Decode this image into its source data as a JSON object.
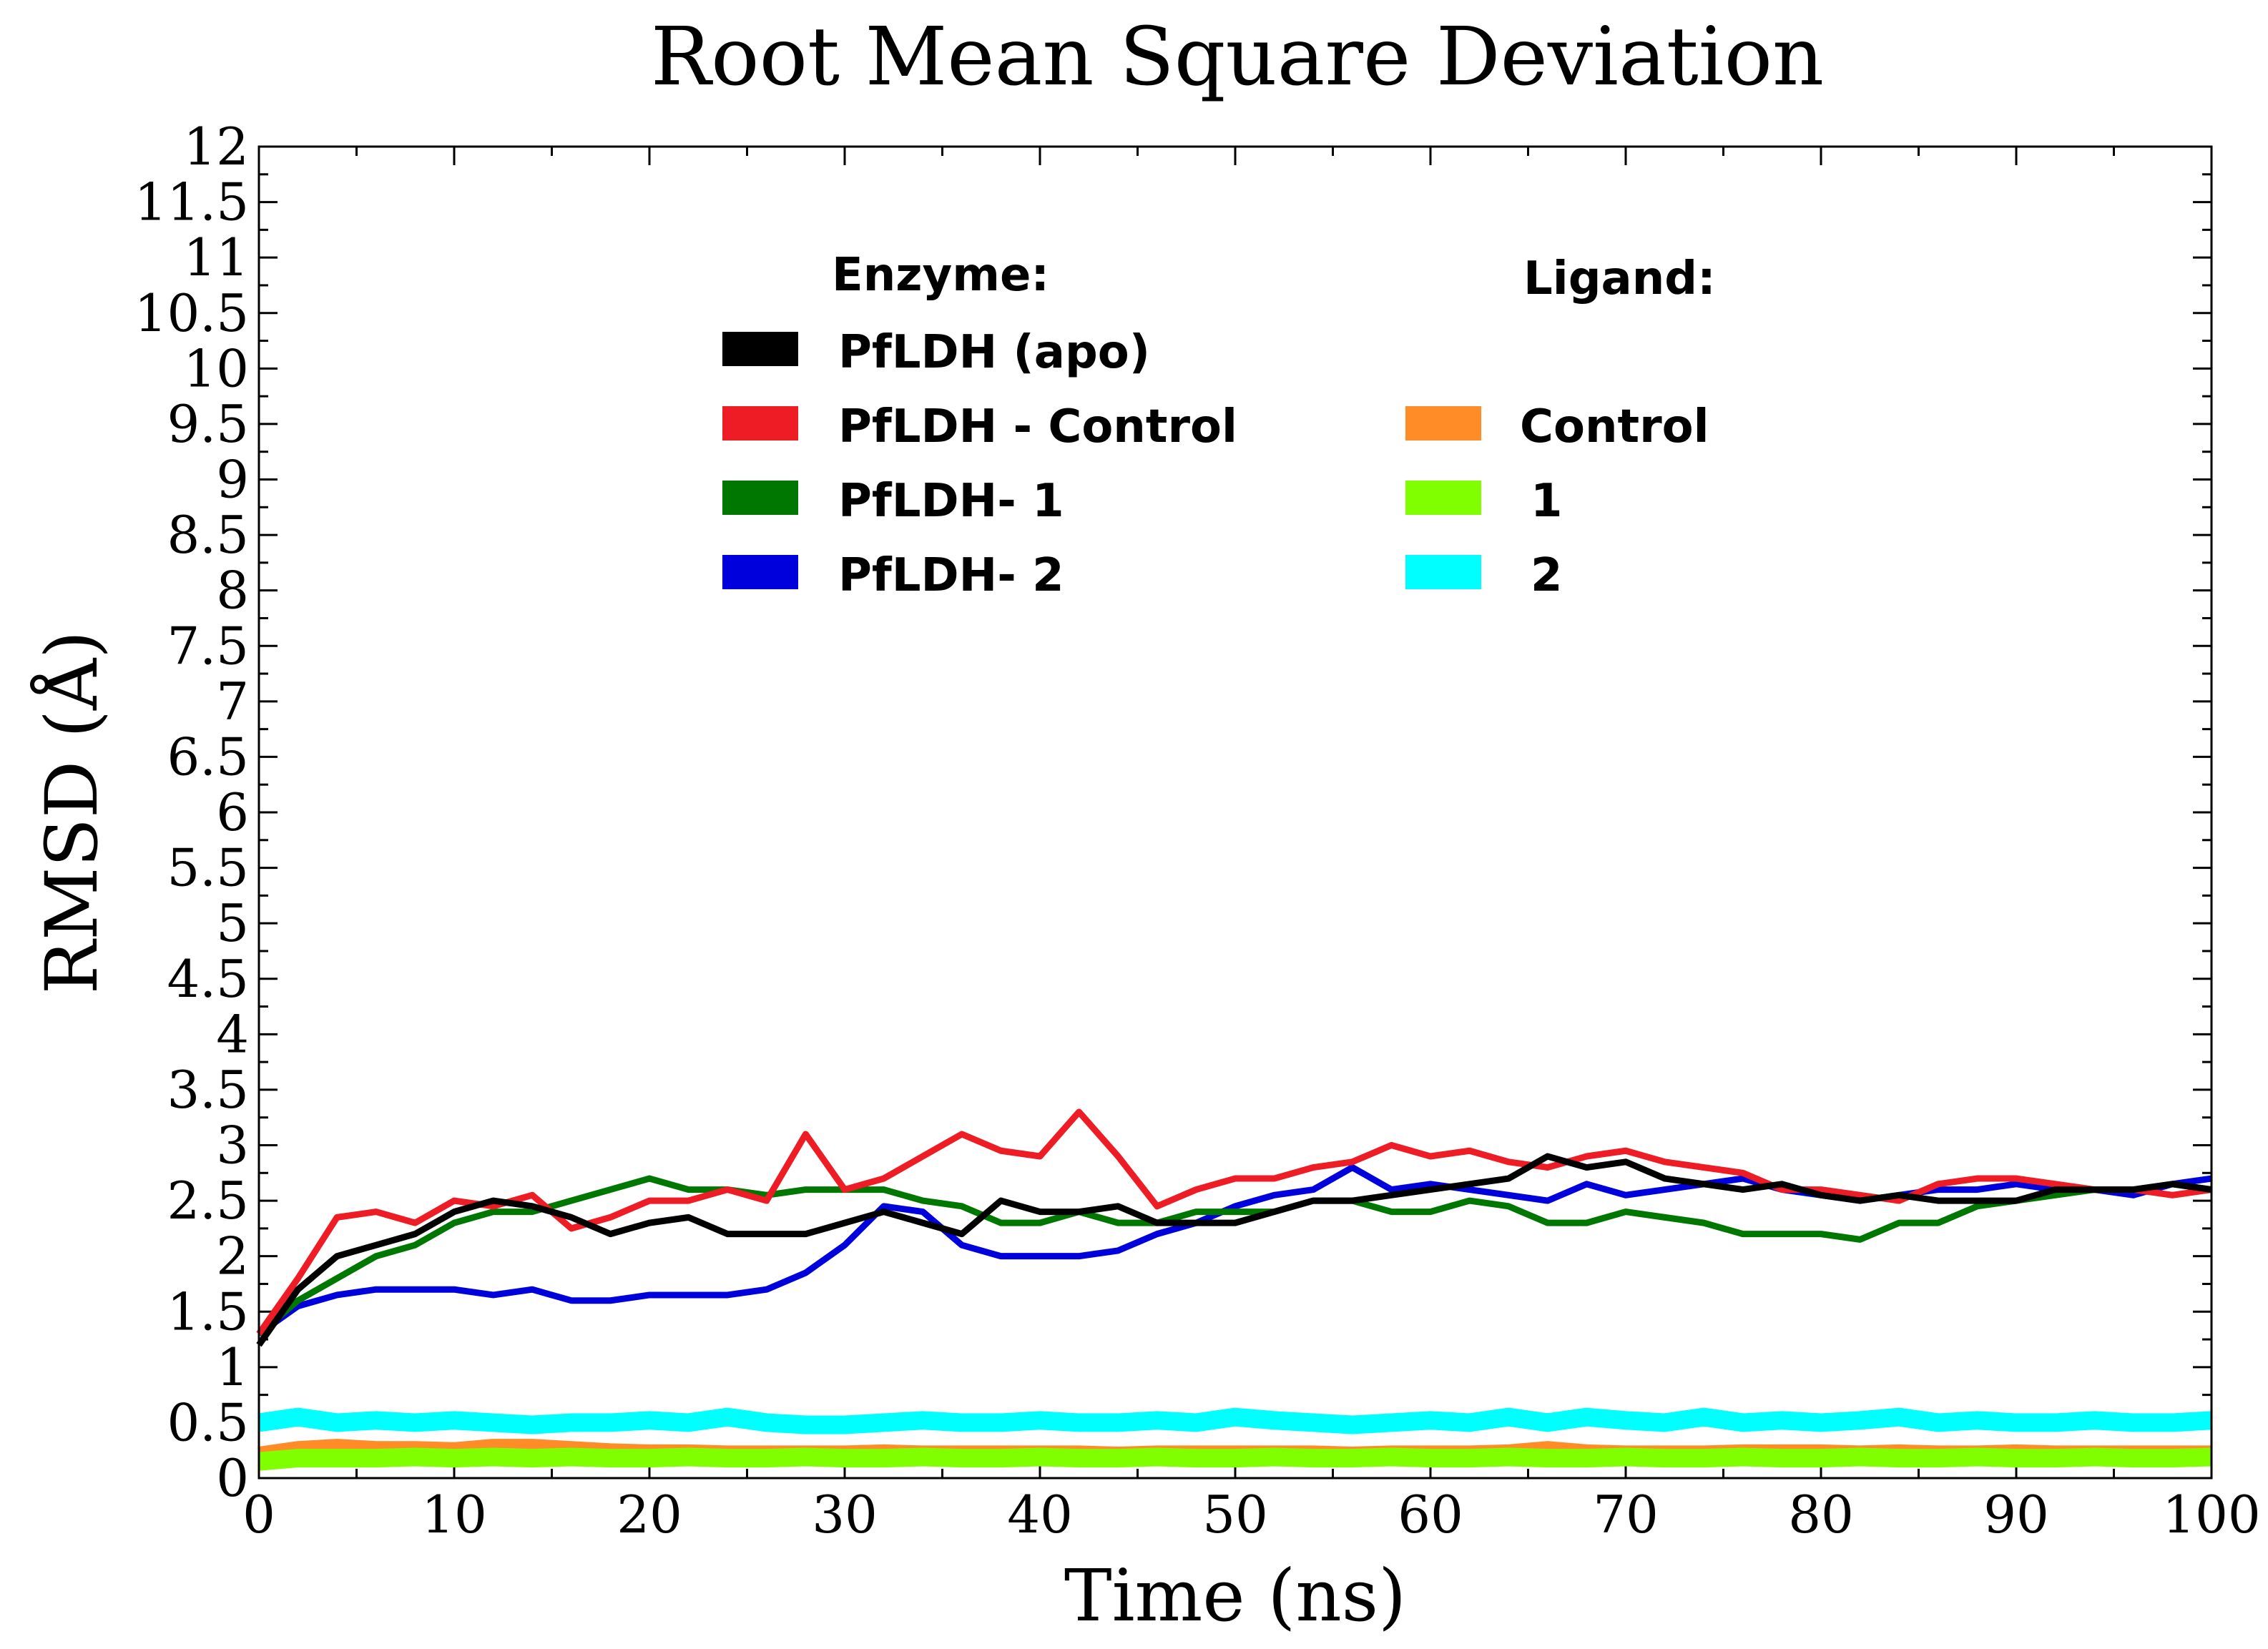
{
  "chart_data": {
    "type": "line",
    "title": "Root Mean Square Deviation",
    "xlabel": "Time (ns)",
    "ylabel": "RMSD (Å)",
    "xlim": [
      0,
      100
    ],
    "ylim": [
      0,
      12
    ],
    "x_ticks": [
      0,
      10,
      20,
      30,
      40,
      50,
      60,
      70,
      80,
      90,
      100
    ],
    "y_ticks": [
      0,
      0.5,
      1,
      1.5,
      2,
      2.5,
      3,
      3.5,
      4,
      4.5,
      5,
      5.5,
      6,
      6.5,
      7,
      7.5,
      8,
      8.5,
      9,
      9.5,
      10,
      10.5,
      11,
      11.5,
      12
    ],
    "legend": {
      "placement": "top",
      "enzyme_heading": "Enzyme:",
      "ligand_heading": "Ligand:"
    },
    "x": [
      0,
      2,
      4,
      6,
      8,
      10,
      12,
      14,
      16,
      18,
      20,
      22,
      24,
      26,
      28,
      30,
      32,
      34,
      36,
      38,
      40,
      42,
      44,
      46,
      48,
      50,
      52,
      54,
      56,
      58,
      60,
      62,
      64,
      66,
      68,
      70,
      72,
      74,
      76,
      78,
      80,
      82,
      84,
      86,
      88,
      90,
      92,
      94,
      96,
      98,
      100
    ],
    "series": [
      {
        "name": "PfLDH (apo)",
        "group": "enzyme",
        "color": "#000000",
        "values": [
          1.2,
          1.7,
          2.0,
          2.1,
          2.2,
          2.4,
          2.5,
          2.45,
          2.35,
          2.2,
          2.3,
          2.35,
          2.2,
          2.2,
          2.2,
          2.3,
          2.4,
          2.3,
          2.2,
          2.5,
          2.4,
          2.4,
          2.45,
          2.3,
          2.3,
          2.3,
          2.4,
          2.5,
          2.5,
          2.55,
          2.6,
          2.65,
          2.7,
          2.9,
          2.8,
          2.85,
          2.7,
          2.65,
          2.6,
          2.65,
          2.55,
          2.5,
          2.55,
          2.5,
          2.5,
          2.5,
          2.6,
          2.6,
          2.6,
          2.65,
          2.6
        ]
      },
      {
        "name": "PfLDH - Control",
        "group": "enzyme",
        "color": "#ee1c24",
        "values": [
          1.3,
          1.8,
          2.35,
          2.4,
          2.3,
          2.5,
          2.45,
          2.55,
          2.25,
          2.35,
          2.5,
          2.5,
          2.6,
          2.5,
          3.1,
          2.6,
          2.7,
          2.9,
          3.1,
          2.95,
          2.9,
          3.3,
          2.9,
          2.45,
          2.6,
          2.7,
          2.7,
          2.8,
          2.85,
          3.0,
          2.9,
          2.95,
          2.85,
          2.8,
          2.9,
          2.95,
          2.85,
          2.8,
          2.75,
          2.6,
          2.6,
          2.55,
          2.5,
          2.65,
          2.7,
          2.7,
          2.65,
          2.6,
          2.6,
          2.55,
          2.6
        ]
      },
      {
        "name": "PfLDH- 1",
        "group": "enzyme",
        "color": "#007700",
        "values": [
          1.3,
          1.6,
          1.8,
          2.0,
          2.1,
          2.3,
          2.4,
          2.4,
          2.5,
          2.6,
          2.7,
          2.6,
          2.6,
          2.55,
          2.6,
          2.6,
          2.6,
          2.5,
          2.45,
          2.3,
          2.3,
          2.4,
          2.3,
          2.3,
          2.4,
          2.4,
          2.4,
          2.5,
          2.5,
          2.4,
          2.4,
          2.5,
          2.45,
          2.3,
          2.3,
          2.4,
          2.35,
          2.3,
          2.2,
          2.2,
          2.2,
          2.15,
          2.3,
          2.3,
          2.45,
          2.5,
          2.55,
          2.6,
          2.6,
          2.65,
          2.6
        ]
      },
      {
        "name": "PfLDH- 2",
        "group": "enzyme",
        "color": "#0000dd",
        "values": [
          1.3,
          1.55,
          1.65,
          1.7,
          1.7,
          1.7,
          1.65,
          1.7,
          1.6,
          1.6,
          1.65,
          1.65,
          1.65,
          1.7,
          1.85,
          2.1,
          2.45,
          2.4,
          2.1,
          2.0,
          2.0,
          2.0,
          2.05,
          2.2,
          2.3,
          2.45,
          2.55,
          2.6,
          2.8,
          2.6,
          2.65,
          2.6,
          2.55,
          2.5,
          2.65,
          2.55,
          2.6,
          2.65,
          2.7,
          2.6,
          2.55,
          2.5,
          2.55,
          2.6,
          2.6,
          2.65,
          2.6,
          2.6,
          2.55,
          2.65,
          2.7
        ]
      },
      {
        "name": "Control",
        "group": "ligand",
        "color": "#ff8c26",
        "values": [
          0.2,
          0.25,
          0.27,
          0.25,
          0.25,
          0.24,
          0.27,
          0.27,
          0.25,
          0.23,
          0.22,
          0.22,
          0.21,
          0.21,
          0.21,
          0.21,
          0.22,
          0.21,
          0.21,
          0.21,
          0.21,
          0.21,
          0.2,
          0.21,
          0.21,
          0.21,
          0.21,
          0.21,
          0.2,
          0.21,
          0.21,
          0.21,
          0.22,
          0.25,
          0.22,
          0.21,
          0.21,
          0.21,
          0.22,
          0.22,
          0.22,
          0.21,
          0.22,
          0.21,
          0.21,
          0.22,
          0.21,
          0.21,
          0.21,
          0.21,
          0.21
        ]
      },
      {
        "name": "1",
        "group": "ligand",
        "color": "#7fff00",
        "values": [
          0.15,
          0.18,
          0.18,
          0.18,
          0.19,
          0.18,
          0.19,
          0.18,
          0.19,
          0.18,
          0.18,
          0.19,
          0.18,
          0.18,
          0.19,
          0.18,
          0.18,
          0.19,
          0.18,
          0.18,
          0.19,
          0.18,
          0.18,
          0.19,
          0.18,
          0.18,
          0.19,
          0.18,
          0.18,
          0.19,
          0.18,
          0.18,
          0.19,
          0.18,
          0.18,
          0.19,
          0.18,
          0.18,
          0.19,
          0.18,
          0.18,
          0.19,
          0.18,
          0.18,
          0.19,
          0.18,
          0.18,
          0.19,
          0.18,
          0.18,
          0.19
        ]
      },
      {
        "name": "2",
        "group": "ligand",
        "color": "#00ffff",
        "values": [
          0.5,
          0.55,
          0.5,
          0.52,
          0.5,
          0.52,
          0.5,
          0.48,
          0.5,
          0.5,
          0.52,
          0.5,
          0.55,
          0.5,
          0.48,
          0.48,
          0.5,
          0.52,
          0.5,
          0.5,
          0.52,
          0.5,
          0.5,
          0.52,
          0.5,
          0.55,
          0.52,
          0.5,
          0.48,
          0.5,
          0.52,
          0.5,
          0.55,
          0.5,
          0.55,
          0.52,
          0.5,
          0.55,
          0.5,
          0.52,
          0.5,
          0.52,
          0.55,
          0.5,
          0.52,
          0.5,
          0.5,
          0.52,
          0.5,
          0.5,
          0.52
        ]
      }
    ]
  }
}
